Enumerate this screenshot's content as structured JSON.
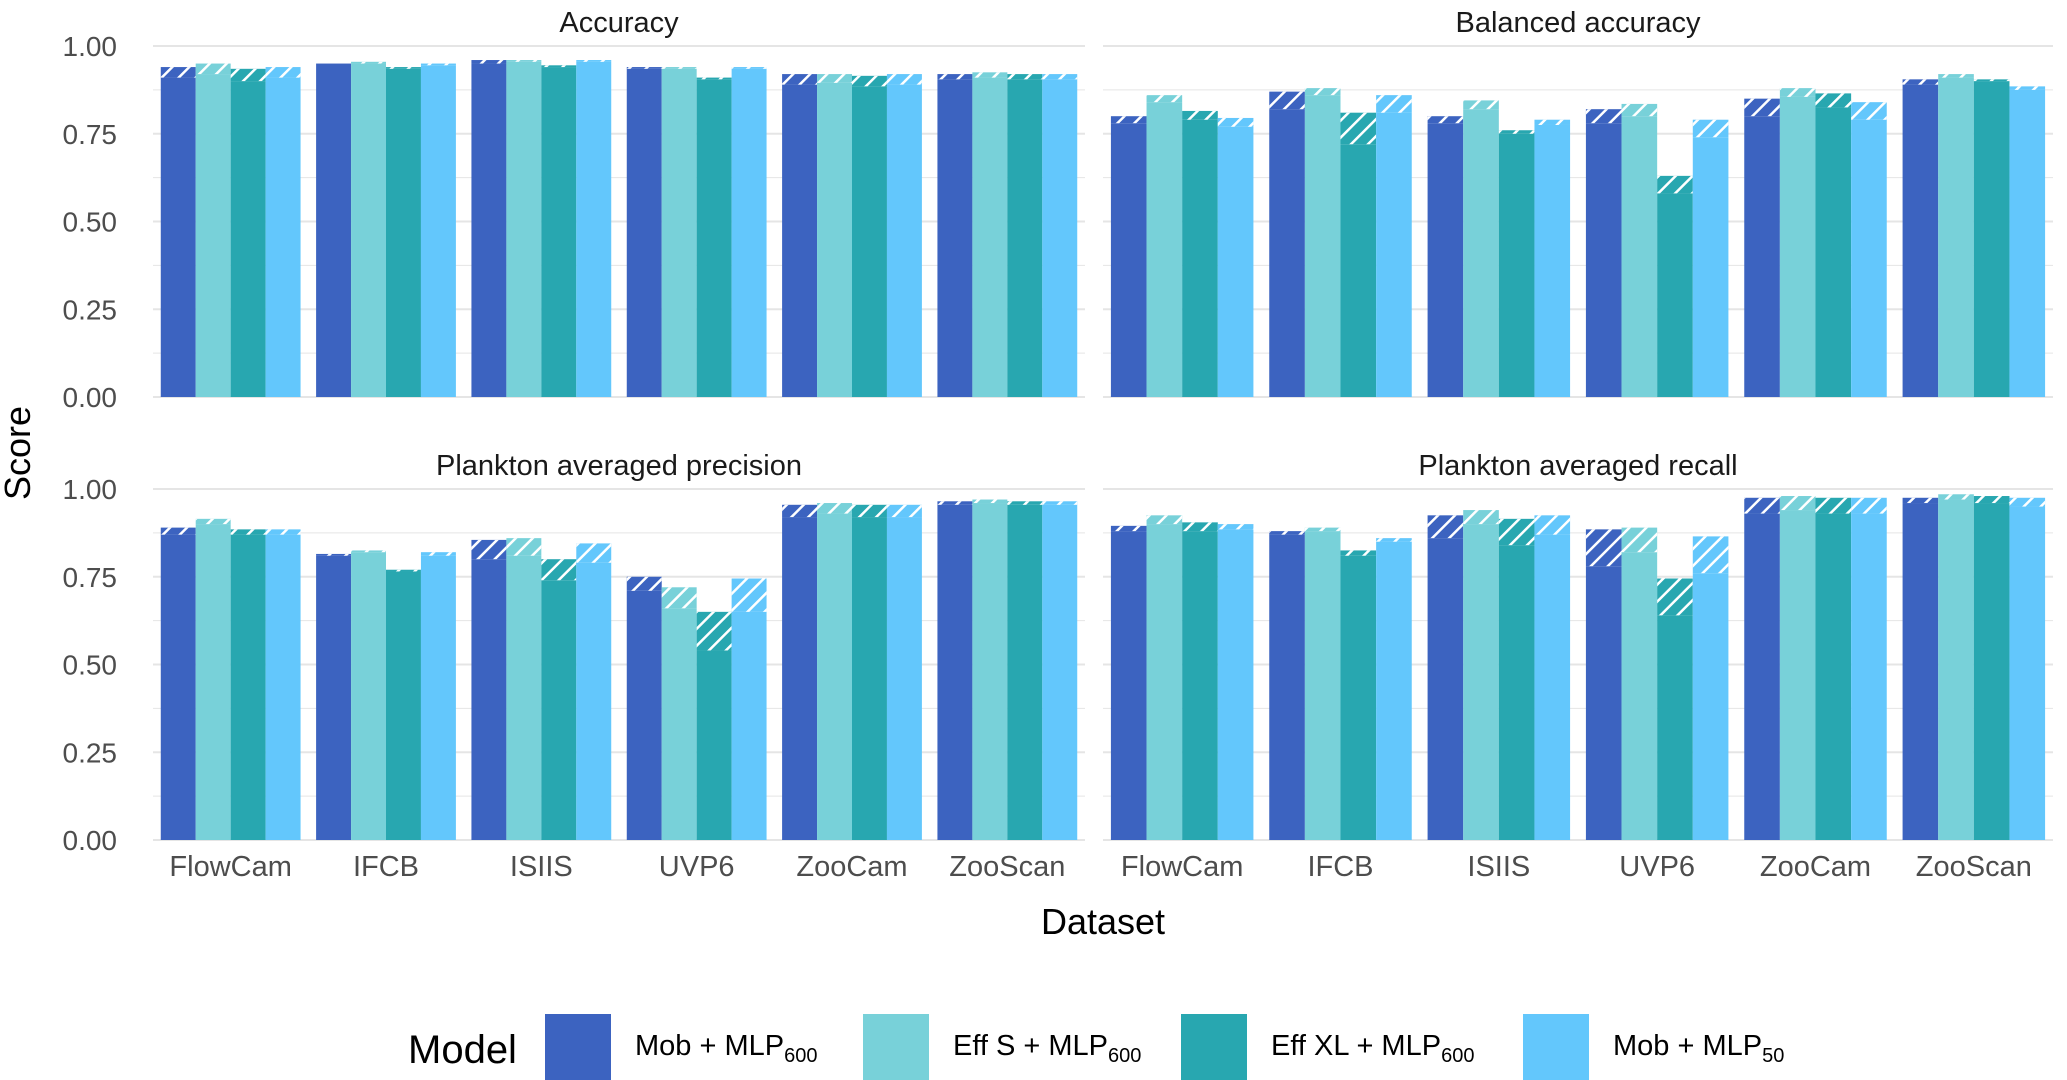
{
  "figure": {
    "y_axis_title": "Score",
    "x_axis_title": "Dataset",
    "legend_title": "Model",
    "colors": {
      "gridline": "#e5e5e5",
      "axis_text": "#4d4d4d",
      "title_text": "#1a1a1a"
    }
  },
  "chart_data": {
    "type": "bar",
    "layout": "faceted 2x2, grouped bars with hatched segment (higher value) over solid segment (lower value)",
    "categories": [
      "FlowCam",
      "IFCB",
      "ISIIS",
      "UVP6",
      "ZooCam",
      "ZooScan"
    ],
    "ylim": [
      0,
      1
    ],
    "yticks": [
      "0.00",
      "0.25",
      "0.50",
      "0.75",
      "1.00"
    ],
    "grid": true,
    "legend_position": "bottom",
    "series_legend": [
      {
        "name_main": "Mob + MLP",
        "name_sub": "600",
        "color": "#3c63c0"
      },
      {
        "name_main": "Eff S + MLP",
        "name_sub": "600",
        "color": "#78d1d9"
      },
      {
        "name_main": "Eff XL + MLP",
        "name_sub": "600",
        "color": "#28a7b0"
      },
      {
        "name_main": "Mob + MLP",
        "name_sub": "50",
        "color": "#63c7fc"
      }
    ],
    "panels": [
      {
        "title": "Accuracy",
        "series": [
          {
            "name": "Mob + MLP600",
            "high": [
              0.94,
              0.95,
              0.96,
              0.94,
              0.92,
              0.92
            ],
            "low": [
              0.91,
              0.95,
              0.95,
              0.935,
              0.89,
              0.905
            ]
          },
          {
            "name": "Eff S + MLP600",
            "high": [
              0.95,
              0.955,
              0.96,
              0.94,
              0.92,
              0.925
            ],
            "low": [
              0.92,
              0.95,
              0.955,
              0.935,
              0.895,
              0.91
            ]
          },
          {
            "name": "Eff XL + MLP600",
            "high": [
              0.935,
              0.94,
              0.945,
              0.91,
              0.915,
              0.92
            ],
            "low": [
              0.9,
              0.935,
              0.94,
              0.905,
              0.885,
              0.905
            ]
          },
          {
            "name": "Mob + MLP50",
            "high": [
              0.94,
              0.95,
              0.96,
              0.94,
              0.92,
              0.92
            ],
            "low": [
              0.91,
              0.945,
              0.955,
              0.935,
              0.89,
              0.905
            ]
          }
        ]
      },
      {
        "title": "Balanced accuracy",
        "series": [
          {
            "name": "Mob + MLP600",
            "high": [
              0.8,
              0.87,
              0.8,
              0.82,
              0.85,
              0.905
            ],
            "low": [
              0.78,
              0.82,
              0.78,
              0.78,
              0.8,
              0.89
            ]
          },
          {
            "name": "Eff S + MLP600",
            "high": [
              0.86,
              0.88,
              0.845,
              0.835,
              0.88,
              0.92
            ],
            "low": [
              0.84,
              0.86,
              0.82,
              0.8,
              0.855,
              0.91
            ]
          },
          {
            "name": "Eff XL + MLP600",
            "high": [
              0.815,
              0.81,
              0.76,
              0.63,
              0.865,
              0.905
            ],
            "low": [
              0.79,
              0.72,
              0.75,
              0.58,
              0.825,
              0.9
            ]
          },
          {
            "name": "Mob + MLP50",
            "high": [
              0.795,
              0.86,
              0.79,
              0.79,
              0.84,
              0.885
            ],
            "low": [
              0.77,
              0.81,
              0.775,
              0.74,
              0.79,
              0.875
            ]
          }
        ]
      },
      {
        "title": "Plankton averaged precision",
        "series": [
          {
            "name": "Mob + MLP600",
            "high": [
              0.89,
              0.815,
              0.855,
              0.75,
              0.955,
              0.965
            ],
            "low": [
              0.87,
              0.81,
              0.8,
              0.71,
              0.92,
              0.955
            ]
          },
          {
            "name": "Eff S + MLP600",
            "high": [
              0.915,
              0.825,
              0.86,
              0.72,
              0.96,
              0.97
            ],
            "low": [
              0.9,
              0.82,
              0.81,
              0.66,
              0.93,
              0.96
            ]
          },
          {
            "name": "Eff XL + MLP600",
            "high": [
              0.885,
              0.77,
              0.8,
              0.65,
              0.955,
              0.965
            ],
            "low": [
              0.87,
              0.765,
              0.74,
              0.54,
              0.92,
              0.955
            ]
          },
          {
            "name": "Mob + MLP50",
            "high": [
              0.885,
              0.82,
              0.845,
              0.745,
              0.955,
              0.965
            ],
            "low": [
              0.87,
              0.81,
              0.79,
              0.65,
              0.92,
              0.955
            ]
          }
        ]
      },
      {
        "title": "Plankton averaged recall",
        "series": [
          {
            "name": "Mob + MLP600",
            "high": [
              0.895,
              0.88,
              0.925,
              0.885,
              0.975,
              0.975
            ],
            "low": [
              0.88,
              0.87,
              0.86,
              0.78,
              0.93,
              0.96
            ]
          },
          {
            "name": "Eff S + MLP600",
            "high": [
              0.925,
              0.89,
              0.94,
              0.89,
              0.98,
              0.985
            ],
            "low": [
              0.9,
              0.88,
              0.9,
              0.82,
              0.94,
              0.97
            ]
          },
          {
            "name": "Eff XL + MLP600",
            "high": [
              0.905,
              0.825,
              0.915,
              0.745,
              0.975,
              0.98
            ],
            "low": [
              0.88,
              0.81,
              0.84,
              0.64,
              0.93,
              0.96
            ]
          },
          {
            "name": "Mob + MLP50",
            "high": [
              0.9,
              0.86,
              0.925,
              0.865,
              0.975,
              0.975
            ],
            "low": [
              0.885,
              0.85,
              0.87,
              0.76,
              0.93,
              0.95
            ]
          }
        ]
      }
    ]
  }
}
